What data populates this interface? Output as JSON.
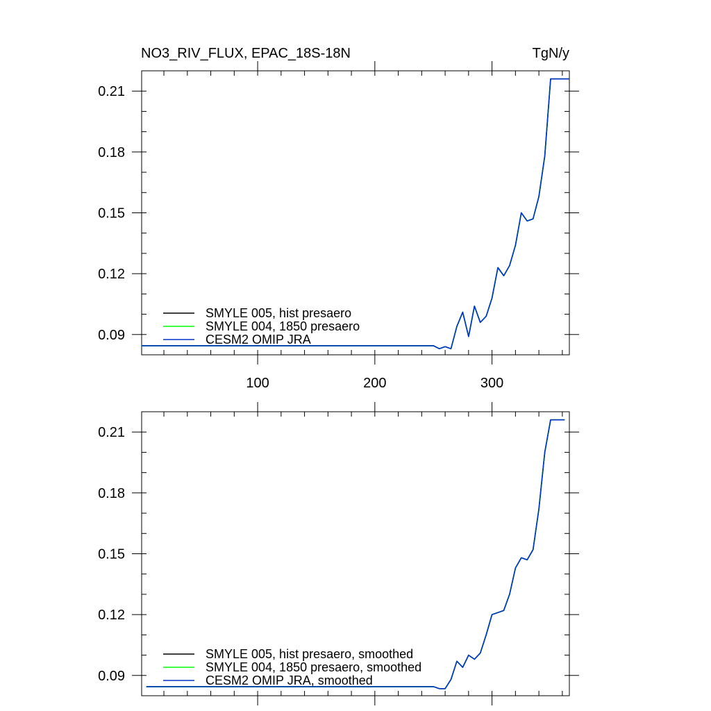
{
  "title_left": "NO3_RIV_FLUX, EPAC_18S-18N",
  "title_right": "TgN/y",
  "colors": {
    "black": "#000000",
    "green": "#00ff00",
    "blue": "#0033cc"
  },
  "chart_data": [
    {
      "type": "line",
      "title": "NO3_RIV_FLUX, EPAC_18S-18N",
      "units": "TgN/y",
      "xlim": [
        1,
        366
      ],
      "ylim": [
        0.08,
        0.22
      ],
      "x_ticks": [
        100,
        200,
        300
      ],
      "y_ticks": [
        0.09,
        0.12,
        0.15,
        0.18,
        0.21
      ],
      "y_tick_labels": [
        "0.09",
        "0.12",
        "0.15",
        "0.18",
        "0.21"
      ],
      "x_tick_labels": [
        "100",
        "200",
        "300"
      ],
      "legend": "bottom-left",
      "series": [
        {
          "name": "SMYLE 005, hist presaero",
          "color": "#000000",
          "x": [
            1,
            250,
            255,
            260,
            265,
            270,
            275,
            280,
            285,
            290,
            295,
            300,
            305,
            310,
            315,
            320,
            325,
            330,
            335,
            340,
            345,
            350,
            360,
            366
          ],
          "y": [
            0.0845,
            0.0845,
            0.083,
            0.084,
            0.083,
            0.094,
            0.101,
            0.089,
            0.104,
            0.096,
            0.099,
            0.108,
            0.123,
            0.119,
            0.124,
            0.134,
            0.15,
            0.146,
            0.147,
            0.158,
            0.178,
            0.216,
            0.216,
            0.216
          ]
        },
        {
          "name": "SMYLE 004, 1850 presaero",
          "color": "#00ff00",
          "x": [
            1,
            250,
            255,
            260,
            265,
            270,
            275,
            280,
            285,
            290,
            295,
            300,
            305,
            310,
            315,
            320,
            325,
            330,
            335,
            340,
            345,
            350,
            360,
            366
          ],
          "y": [
            0.0845,
            0.0845,
            0.083,
            0.084,
            0.083,
            0.094,
            0.101,
            0.089,
            0.104,
            0.096,
            0.099,
            0.108,
            0.123,
            0.119,
            0.124,
            0.134,
            0.15,
            0.146,
            0.147,
            0.158,
            0.178,
            0.216,
            0.216,
            0.216
          ]
        },
        {
          "name": "CESM2 OMIP JRA",
          "color": "#0033cc",
          "x": [
            1,
            250,
            255,
            260,
            265,
            270,
            275,
            280,
            285,
            290,
            295,
            300,
            305,
            310,
            315,
            320,
            325,
            330,
            335,
            340,
            345,
            350,
            360,
            366
          ],
          "y": [
            0.0845,
            0.0845,
            0.083,
            0.084,
            0.083,
            0.094,
            0.101,
            0.089,
            0.104,
            0.096,
            0.099,
            0.108,
            0.123,
            0.119,
            0.124,
            0.134,
            0.15,
            0.146,
            0.147,
            0.158,
            0.178,
            0.216,
            0.216,
            0.216
          ]
        }
      ]
    },
    {
      "type": "line",
      "xlim": [
        1,
        366
      ],
      "ylim": [
        0.08,
        0.22
      ],
      "x_ticks": [
        100,
        200,
        300
      ],
      "y_ticks": [
        0.09,
        0.12,
        0.15,
        0.18,
        0.21
      ],
      "y_tick_labels": [
        "0.09",
        "0.12",
        "0.15",
        "0.18",
        "0.21"
      ],
      "legend": "bottom-left",
      "series": [
        {
          "name": "SMYLE 005, hist presaero, smoothed",
          "color": "#000000",
          "x": [
            5,
            250,
            255,
            260,
            265,
            270,
            275,
            280,
            285,
            290,
            295,
            300,
            305,
            310,
            315,
            320,
            325,
            330,
            335,
            340,
            345,
            350,
            355,
            362
          ],
          "y": [
            0.0845,
            0.0845,
            0.0835,
            0.0835,
            0.088,
            0.097,
            0.094,
            0.1,
            0.098,
            0.101,
            0.11,
            0.12,
            0.121,
            0.122,
            0.13,
            0.143,
            0.148,
            0.147,
            0.152,
            0.172,
            0.2,
            0.216,
            0.216,
            0.216
          ]
        },
        {
          "name": "SMYLE 004, 1850 presaero, smoothed",
          "color": "#00ff00",
          "x": [
            5,
            250,
            255,
            260,
            265,
            270,
            275,
            280,
            285,
            290,
            295,
            300,
            305,
            310,
            315,
            320,
            325,
            330,
            335,
            340,
            345,
            350,
            355,
            362
          ],
          "y": [
            0.0845,
            0.0845,
            0.0835,
            0.0835,
            0.088,
            0.097,
            0.094,
            0.1,
            0.098,
            0.101,
            0.11,
            0.12,
            0.121,
            0.122,
            0.13,
            0.143,
            0.148,
            0.147,
            0.152,
            0.172,
            0.2,
            0.216,
            0.216,
            0.216
          ]
        },
        {
          "name": "CESM2 OMIP JRA, smoothed",
          "color": "#0033cc",
          "x": [
            5,
            250,
            255,
            260,
            265,
            270,
            275,
            280,
            285,
            290,
            295,
            300,
            305,
            310,
            315,
            320,
            325,
            330,
            335,
            340,
            345,
            350,
            355,
            362
          ],
          "y": [
            0.0845,
            0.0845,
            0.0835,
            0.0835,
            0.088,
            0.097,
            0.094,
            0.1,
            0.098,
            0.101,
            0.11,
            0.12,
            0.121,
            0.122,
            0.13,
            0.143,
            0.148,
            0.147,
            0.152,
            0.172,
            0.2,
            0.216,
            0.216,
            0.216
          ]
        }
      ]
    }
  ]
}
